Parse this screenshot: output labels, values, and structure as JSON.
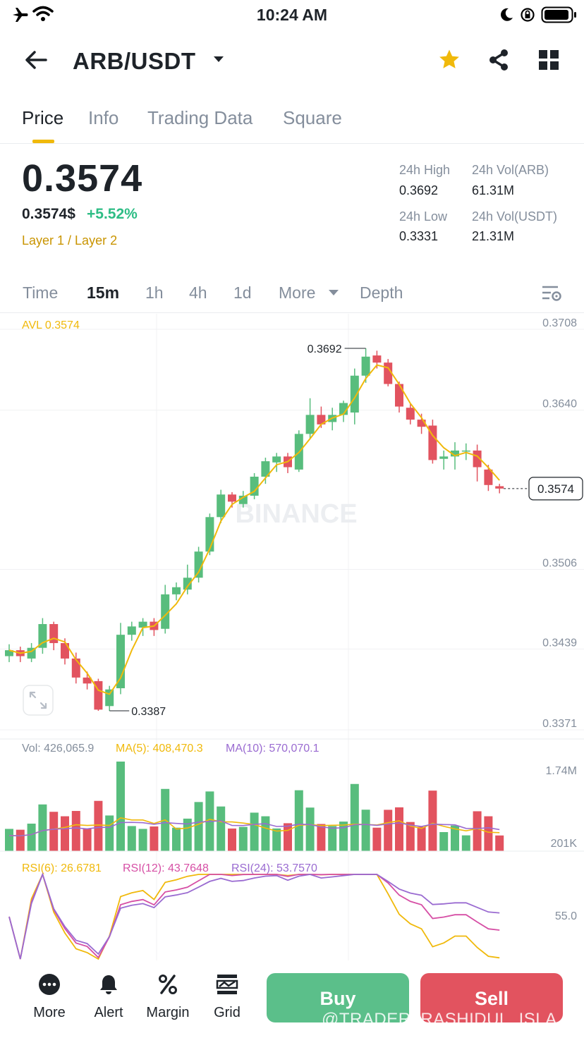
{
  "status_bar": {
    "time": "10:24 AM"
  },
  "header": {
    "pair": "ARB/USDT"
  },
  "tabs": [
    {
      "label": "Price",
      "active": true
    },
    {
      "label": "Info",
      "active": false
    },
    {
      "label": "Trading Data",
      "active": false
    },
    {
      "label": "Square",
      "active": false
    }
  ],
  "price": {
    "last": "0.3574",
    "usd": "0.3574$",
    "change": "+5.52%",
    "tag": "Layer 1 / Layer 2"
  },
  "stats": {
    "high_label": "24h High",
    "high_value": "0.3692",
    "vol_arb_label": "24h Vol(ARB)",
    "vol_arb_value": "61.31M",
    "low_label": "24h Low",
    "low_value": "0.3331",
    "vol_usdt_label": "24h Vol(USDT)",
    "vol_usdt_value": "21.31M"
  },
  "intervals": {
    "time": "Time",
    "m15": "15m",
    "h1": "1h",
    "h4": "4h",
    "d1": "1d",
    "more": "More",
    "depth": "Depth"
  },
  "chart_data": {
    "type": "candlestick",
    "interval": "15m",
    "avl_label": "AVL 0.3574",
    "price_ticks": [
      "0.3708",
      "0.3640",
      "0.3506",
      "0.3439",
      "0.3371"
    ],
    "ylim": [
      0.3371,
      0.3708
    ],
    "current_price": "0.3574",
    "high_marker": "0.3692",
    "low_marker": "0.3387",
    "candles": [
      [
        0.3433,
        0.3438,
        0.3428,
        0.3443
      ],
      [
        0.3438,
        0.3433,
        0.3428,
        0.3441
      ],
      [
        0.3431,
        0.344,
        0.3428,
        0.3444
      ],
      [
        0.344,
        0.346,
        0.3435,
        0.3465
      ],
      [
        0.346,
        0.3444,
        0.3438,
        0.3462
      ],
      [
        0.3444,
        0.3431,
        0.3426,
        0.3448
      ],
      [
        0.3431,
        0.3415,
        0.341,
        0.3436
      ],
      [
        0.3415,
        0.341,
        0.3405,
        0.342
      ],
      [
        0.3412,
        0.3388,
        0.3387,
        0.3414
      ],
      [
        0.3391,
        0.3405,
        0.3387,
        0.3408
      ],
      [
        0.3406,
        0.3451,
        0.3401,
        0.3461
      ],
      [
        0.3451,
        0.3458,
        0.3446,
        0.3462
      ],
      [
        0.3457,
        0.3462,
        0.345,
        0.3465
      ],
      [
        0.3462,
        0.3455,
        0.345,
        0.3465
      ],
      [
        0.3456,
        0.3485,
        0.3452,
        0.3493
      ],
      [
        0.3485,
        0.3491,
        0.348,
        0.3495
      ],
      [
        0.3489,
        0.3499,
        0.3485,
        0.351
      ],
      [
        0.3499,
        0.3521,
        0.3495,
        0.3525
      ],
      [
        0.3521,
        0.355,
        0.3518,
        0.3553
      ],
      [
        0.355,
        0.3569,
        0.3545,
        0.3573
      ],
      [
        0.3569,
        0.3563,
        0.3558,
        0.3571
      ],
      [
        0.3561,
        0.3568,
        0.3558,
        0.3572
      ],
      [
        0.3568,
        0.3584,
        0.3565,
        0.3587
      ],
      [
        0.3584,
        0.3597,
        0.3578,
        0.36
      ],
      [
        0.3596,
        0.3601,
        0.3588,
        0.3604
      ],
      [
        0.3601,
        0.3592,
        0.3587,
        0.3604
      ],
      [
        0.359,
        0.362,
        0.3588,
        0.3623
      ],
      [
        0.362,
        0.3636,
        0.3616,
        0.365
      ],
      [
        0.3636,
        0.3628,
        0.3625,
        0.3643
      ],
      [
        0.363,
        0.3636,
        0.3623,
        0.3642
      ],
      [
        0.3636,
        0.3646,
        0.363,
        0.3648
      ],
      [
        0.3638,
        0.3669,
        0.3628,
        0.3675
      ],
      [
        0.3669,
        0.3685,
        0.3663,
        0.3692
      ],
      [
        0.3686,
        0.368,
        0.3675,
        0.369
      ],
      [
        0.368,
        0.3662,
        0.366,
        0.3683
      ],
      [
        0.3662,
        0.3643,
        0.3638,
        0.3664
      ],
      [
        0.3642,
        0.3632,
        0.3628,
        0.3645
      ],
      [
        0.3632,
        0.3626,
        0.362,
        0.3637
      ],
      [
        0.3627,
        0.3598,
        0.3595,
        0.3632
      ],
      [
        0.3599,
        0.3601,
        0.359,
        0.3606
      ],
      [
        0.3601,
        0.3606,
        0.359,
        0.3613
      ],
      [
        0.3606,
        0.3606,
        0.3598,
        0.3612
      ],
      [
        0.3606,
        0.3592,
        0.358,
        0.3611
      ],
      [
        0.359,
        0.3577,
        0.3572,
        0.3594
      ],
      [
        0.3576,
        0.3574,
        0.357,
        0.3578
      ]
    ],
    "volume": {
      "label": "Vol: 426,065.9",
      "ma5_label": "MA(5): 408,470.3",
      "ma10_label": "MA(10): 570,070.1",
      "ticks": [
        "1.74M",
        "201K"
      ]
    },
    "rsi": {
      "rsi6_label": "RSI(6): 26.6781",
      "rsi12_label": "RSI(12): 43.7648",
      "rsi24_label": "RSI(24): 53.7570",
      "tick": "55.0"
    },
    "colors": {
      "up": "#58bd7d",
      "down": "#e2535f",
      "ma5": "#f0b90b",
      "ma10": "#9a6bd1",
      "rsi12": "#d64fa5"
    }
  },
  "nav": [
    {
      "label": "More",
      "icon": "more-icon"
    },
    {
      "label": "Alert",
      "icon": "bell-icon"
    },
    {
      "label": "Margin",
      "icon": "percent-icon"
    },
    {
      "label": "Grid",
      "icon": "grid-bot-icon"
    }
  ],
  "actions": {
    "buy": "Buy",
    "sell": "Sell"
  },
  "watermark": "@TRADER_RASHIDUL_ISLA..."
}
